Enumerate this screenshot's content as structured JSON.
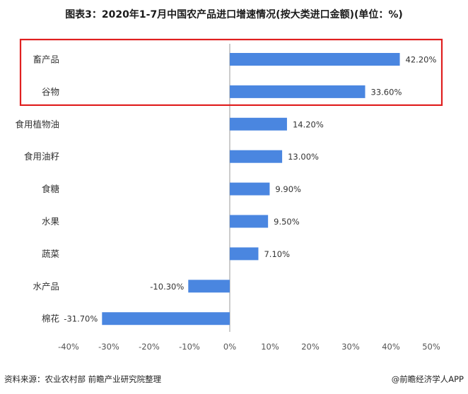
{
  "title": "图表3：2020年1-7月中国农产品进口增速情况(按大类进口金额)(单位：%)",
  "source": "资料来源：农业农村部 前瞻产业研究院整理",
  "brand": "@前瞻经济学人APP",
  "colors": {
    "bar": "#4a86e0",
    "highlight_box": "#e02020",
    "zero_line": "#999999"
  },
  "chart_data": {
    "type": "bar",
    "orientation": "horizontal",
    "categories": [
      "畜产品",
      "谷物",
      "食用植物油",
      "食用油籽",
      "食糖",
      "水果",
      "蔬菜",
      "水产品",
      "棉花"
    ],
    "values": [
      42.2,
      33.6,
      14.2,
      13.0,
      9.9,
      9.5,
      7.1,
      -10.3,
      -31.7
    ],
    "value_labels": [
      "42.20%",
      "33.60%",
      "14.20%",
      "13.00%",
      "9.90%",
      "9.50%",
      "7.10%",
      "-10.30%",
      "-31.70%"
    ],
    "xlim": [
      -40,
      50
    ],
    "xticks": [
      -40,
      -30,
      -20,
      -10,
      0,
      10,
      20,
      30,
      40,
      50
    ],
    "xtick_labels": [
      "-40%",
      "-30%",
      "-20%",
      "-10%",
      "0%",
      "10%",
      "20%",
      "30%",
      "40%",
      "50%"
    ],
    "highlighted_categories": [
      "畜产品",
      "谷物"
    ],
    "grid": false,
    "legend": "none"
  }
}
